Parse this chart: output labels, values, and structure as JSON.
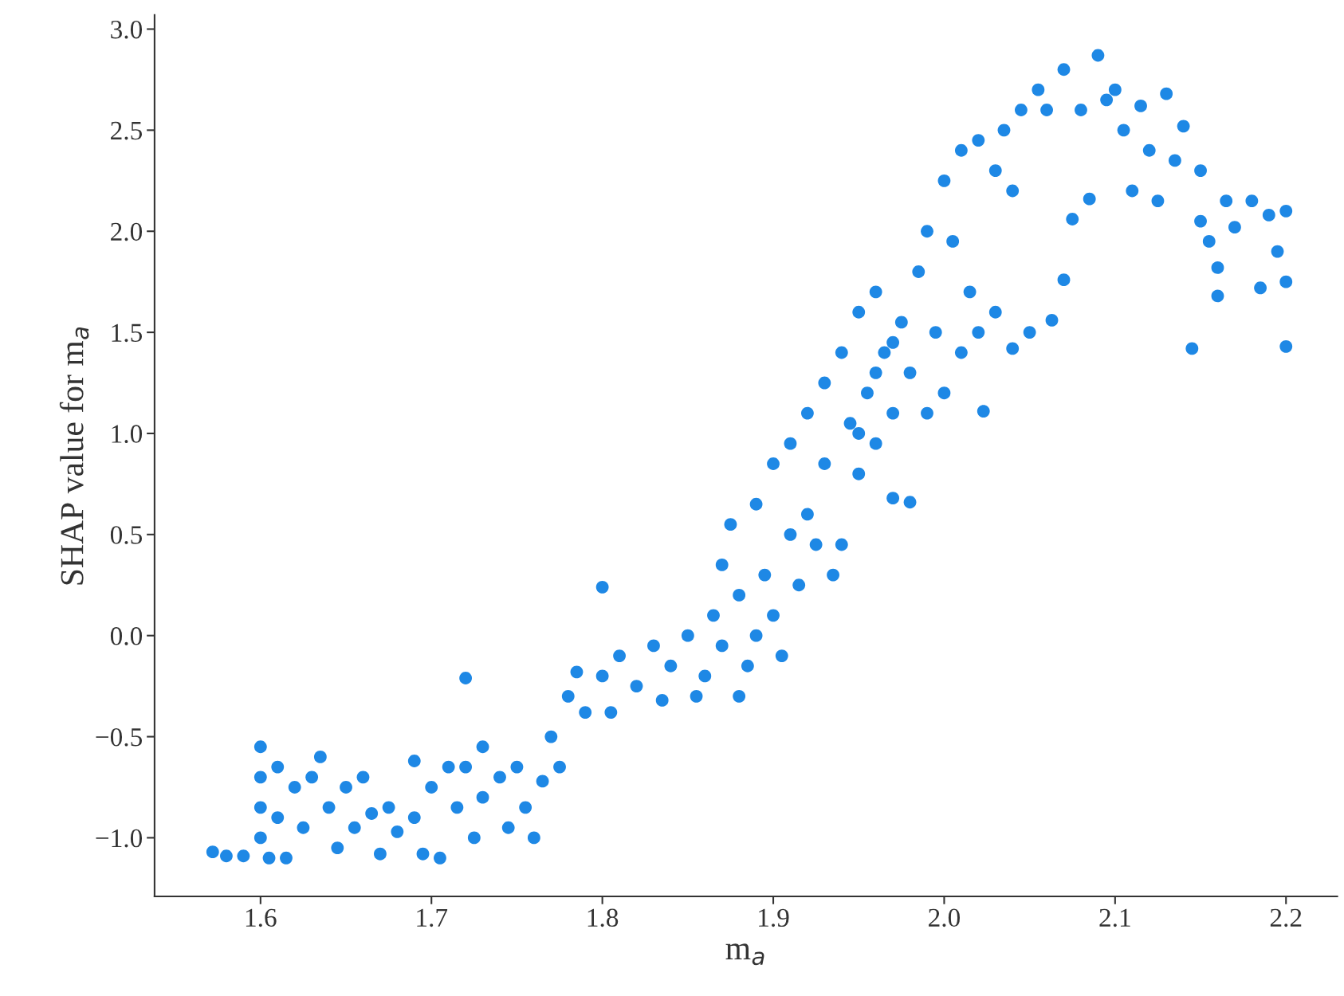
{
  "chart_data": {
    "type": "scatter",
    "xlabel": "m$_{a}$",
    "ylabel": "SHAP value for m$_{a}$",
    "xlim": [
      1.538,
      2.23
    ],
    "ylim": [
      -1.29,
      3.07
    ],
    "xticks": [
      1.6,
      1.7,
      1.8,
      1.9,
      {
        "value": 2.0,
        "label": "2.0"
      },
      2.1,
      2.2
    ],
    "yticks": [
      {
        "value": -1.0,
        "label": "−1.0"
      },
      {
        "value": -0.5,
        "label": "−0.5"
      },
      {
        "value": 0.0,
        "label": "0.0"
      },
      0.5,
      {
        "value": 1.0,
        "label": "1.0"
      },
      1.5,
      {
        "value": 2.0,
        "label": "2.0"
      },
      2.5,
      {
        "value": 3.0,
        "label": "3.0"
      }
    ],
    "grid": false,
    "legend": false,
    "marker": "circle",
    "series": [
      {
        "color": "#1e88e5",
        "x": [
          1.572,
          1.58,
          1.59,
          1.6,
          1.6,
          1.6,
          1.6,
          1.605,
          1.61,
          1.61,
          1.615,
          1.62,
          1.625,
          1.63,
          1.635,
          1.64,
          1.645,
          1.65,
          1.655,
          1.66,
          1.665,
          1.67,
          1.675,
          1.68,
          1.69,
          1.69,
          1.695,
          1.7,
          1.705,
          1.71,
          1.715,
          1.72,
          1.72,
          1.725,
          1.73,
          1.73,
          1.74,
          1.745,
          1.75,
          1.755,
          1.76,
          1.765,
          1.77,
          1.775,
          1.78,
          1.785,
          1.79,
          1.8,
          1.8,
          1.805,
          1.81,
          1.82,
          1.83,
          1.835,
          1.84,
          1.85,
          1.855,
          1.86,
          1.865,
          1.87,
          1.87,
          1.875,
          1.88,
          1.88,
          1.885,
          1.89,
          1.89,
          1.895,
          1.9,
          1.9,
          1.905,
          1.91,
          1.91,
          1.915,
          1.92,
          1.92,
          1.925,
          1.93,
          1.93,
          1.935,
          1.94,
          1.94,
          1.945,
          1.95,
          1.95,
          1.955,
          1.96,
          1.96,
          1.965,
          1.97,
          1.97,
          1.975,
          1.98,
          1.98,
          1.985,
          1.99,
          1.99,
          1.995,
          2.0,
          2.0,
          2.005,
          2.01,
          2.01,
          2.015,
          2.02,
          2.02,
          2.023,
          2.03,
          2.03,
          2.035,
          2.04,
          2.04,
          2.045,
          2.05,
          2.055,
          2.06,
          2.063,
          2.07,
          2.07,
          2.075,
          2.08,
          2.085,
          2.09,
          2.095,
          2.1,
          2.105,
          2.11,
          2.115,
          2.12,
          2.125,
          2.13,
          2.135,
          2.14,
          2.145,
          2.15,
          2.15,
          2.155,
          2.16,
          2.16,
          2.165,
          2.17,
          2.18,
          2.185,
          2.19,
          2.195,
          2.2,
          2.2,
          2.2,
          1.97,
          1.96,
          1.95
        ],
        "values": [
          -1.07,
          -1.09,
          -1.09,
          -0.55,
          -0.7,
          -0.85,
          -1.0,
          -1.1,
          -0.65,
          -0.9,
          -1.1,
          -0.75,
          -0.95,
          -0.7,
          -0.6,
          -0.85,
          -1.05,
          -0.75,
          -0.95,
          -0.7,
          -0.88,
          -1.08,
          -0.85,
          -0.97,
          -0.62,
          -0.9,
          -1.08,
          -0.75,
          -1.1,
          -0.65,
          -0.85,
          -0.21,
          -0.65,
          -1.0,
          -0.55,
          -0.8,
          -0.7,
          -0.95,
          -0.65,
          -0.85,
          -1.0,
          -0.72,
          -0.5,
          -0.65,
          -0.3,
          -0.18,
          -0.38,
          0.24,
          -0.2,
          -0.38,
          -0.1,
          -0.25,
          -0.05,
          -0.32,
          -0.15,
          0.0,
          -0.3,
          -0.2,
          0.1,
          0.35,
          -0.05,
          0.55,
          -0.3,
          0.2,
          -0.15,
          0.65,
          0.0,
          0.3,
          0.85,
          0.1,
          -0.1,
          0.5,
          0.95,
          0.25,
          1.1,
          0.6,
          0.45,
          1.25,
          0.85,
          0.3,
          1.4,
          0.45,
          1.05,
          1.6,
          0.8,
          1.2,
          1.7,
          0.95,
          1.4,
          0.68,
          1.1,
          1.55,
          0.66,
          1.3,
          1.8,
          1.1,
          2.0,
          1.5,
          2.25,
          1.2,
          1.95,
          2.4,
          1.4,
          1.7,
          2.45,
          1.5,
          1.11,
          2.3,
          1.6,
          2.5,
          1.42,
          2.2,
          2.6,
          1.5,
          2.7,
          2.6,
          1.56,
          2.8,
          1.76,
          2.06,
          2.6,
          2.16,
          2.87,
          2.65,
          2.7,
          2.5,
          2.2,
          2.62,
          2.4,
          2.15,
          2.68,
          2.35,
          2.52,
          1.42,
          2.3,
          2.05,
          1.95,
          1.68,
          1.82,
          2.15,
          2.02,
          2.15,
          1.72,
          2.08,
          1.9,
          2.1,
          1.43,
          1.75,
          1.45,
          1.3,
          1.0
        ]
      }
    ]
  }
}
